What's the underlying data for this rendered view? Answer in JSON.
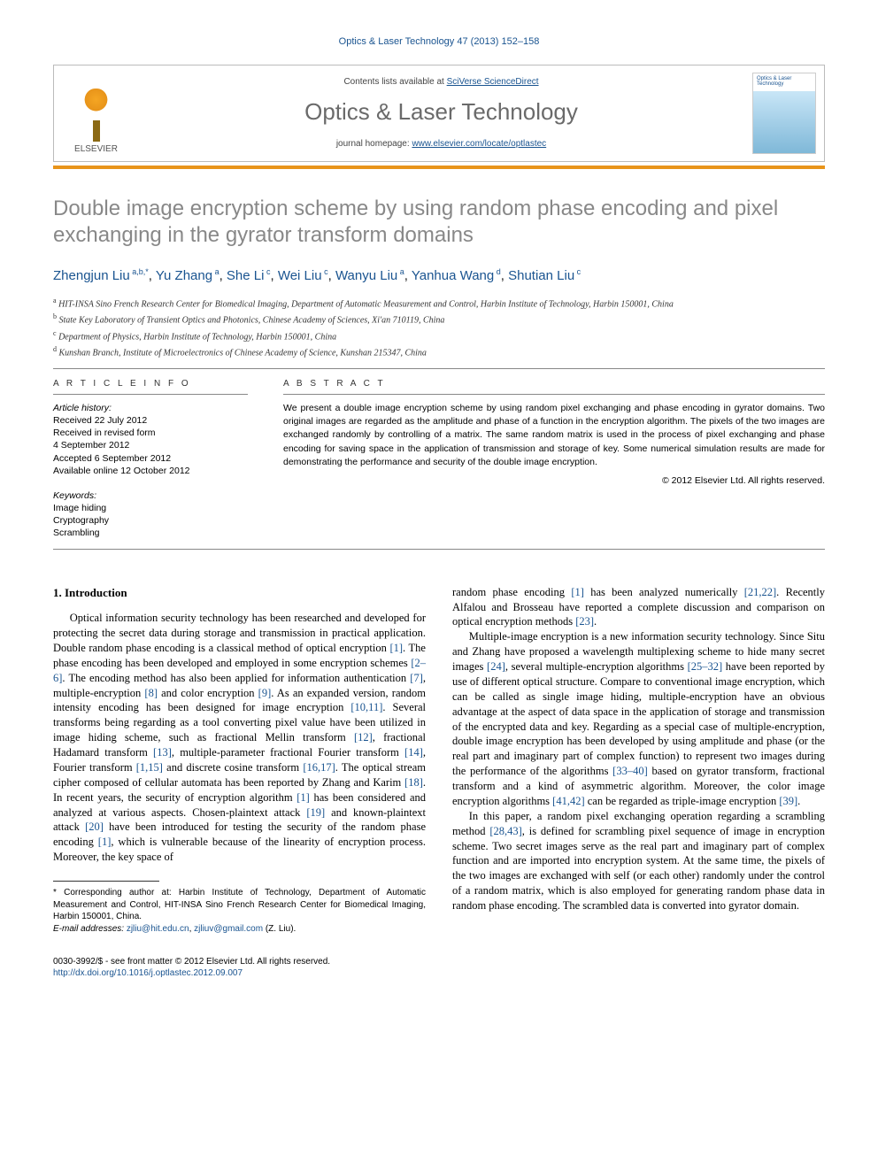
{
  "running_head": "Optics & Laser Technology 47 (2013) 152–158",
  "masthead": {
    "contents_prefix": "Contents lists available at ",
    "contents_link": "SciVerse ScienceDirect",
    "journal": "Optics & Laser Technology",
    "homepage_prefix": "journal homepage: ",
    "homepage_link": "www.elsevier.com/locate/optlastec",
    "publisher": "ELSEVIER",
    "cover_label": "Optics & Laser Technology"
  },
  "title": "Double image encryption scheme by using random phase encoding and pixel exchanging in the gyrator transform domains",
  "authors_html": "Zhengjun Liu <sup>a,b,*</sup>, Yu Zhang <sup>a</sup>, She Li <sup>c</sup>, Wei Liu <sup>c</sup>, Wanyu Liu <sup>a</sup>, Yanhua Wang <sup>d</sup>, Shutian Liu <sup>c</sup>",
  "affiliations": [
    "a HIT-INSA Sino French Research Center for Biomedical Imaging, Department of Automatic Measurement and Control, Harbin Institute of Technology, Harbin 150001, China",
    "b State Key Laboratory of Transient Optics and Photonics, Chinese Academy of Sciences, Xi'an 710119, China",
    "c Department of Physics, Harbin Institute of Technology, Harbin 150001, China",
    "d Kunshan Branch, Institute of Microelectronics of Chinese Academy of Science, Kunshan 215347, China"
  ],
  "article_info": {
    "heading": "A R T I C L E  I N F O",
    "history_label": "Article history:",
    "received": "Received 22 July 2012",
    "revised1": "Received in revised form",
    "revised2": "4 September 2012",
    "accepted": "Accepted 6 September 2012",
    "online": "Available online 12 October 2012",
    "keywords_label": "Keywords:",
    "keywords": [
      "Image hiding",
      "Cryptography",
      "Scrambling"
    ]
  },
  "abstract": {
    "heading": "A B S T R A C T",
    "text": "We present a double image encryption scheme by using random pixel exchanging and phase encoding in gyrator domains. Two original images are regarded as the amplitude and phase of a function in the encryption algorithm. The pixels of the two images are exchanged randomly by controlling of a matrix. The same random matrix is used in the process of pixel exchanging and phase encoding for saving space in the application of transmission and storage of key. Some numerical simulation results are made for demonstrating the performance and security of the double image encryption.",
    "copyright": "© 2012 Elsevier Ltd. All rights reserved."
  },
  "section1": {
    "heading": "1. Introduction",
    "p1": "Optical information security technology has been researched and developed for protecting the secret data during storage and transmission in practical application. Double random phase encoding is a classical method of optical encryption [1]. The phase encoding has been developed and employed in some encryption schemes [2–6]. The encoding method has also been applied for information authentication [7], multiple-encryption [8] and color encryption [9]. As an expanded version, random intensity encoding has been designed for image encryption [10,11]. Several transforms being regarding as a tool converting pixel value have been utilized in image hiding scheme, such as fractional Mellin transform [12], fractional Hadamard transform [13], multiple-parameter fractional Fourier transform [14], Fourier transform [1,15] and discrete cosine transform [16,17]. The optical stream cipher composed of cellular automata has been reported by Zhang and Karim [18]. In recent years, the security of encryption algorithm [1] has been considered and analyzed at various aspects. Chosen-plaintext attack [19] and known-plaintext attack [20] have been introduced for testing the security of the random phase encoding [1], which is vulnerable because of the linearity of encryption process. Moreover, the key space of",
    "p2": "random phase encoding [1] has been analyzed numerically [21,22]. Recently Alfalou and Brosseau have reported a complete discussion and comparison on optical encryption methods [23].",
    "p3": "Multiple-image encryption is a new information security technology. Since Situ and Zhang have proposed a wavelength multiplexing scheme to hide many secret images [24], several multiple-encryption algorithms [25–32] have been reported by use of different optical structure. Compare to conventional image encryption, which can be called as single image hiding, multiple-encryption have an obvious advantage at the aspect of data space in the application of storage and transmission of the encrypted data and key. Regarding as a special case of multiple-encryption, double image encryption has been developed by using amplitude and phase (or the real part and imaginary part of complex function) to represent two images during the performance of the algorithms [33–40] based on gyrator transform, fractional transform and a kind of asymmetric algorithm. Moreover, the color image encryption algorithms [41,42] can be regarded as triple-image encryption [39].",
    "p4": "In this paper, a random pixel exchanging operation regarding a scrambling method [28,43], is defined for scrambling pixel sequence of image in encryption scheme. Two secret images serve as the real part and imaginary part of complex function and are imported into encryption system. At the same time, the pixels of the two images are exchanged with self (or each other) randomly under the control of a random matrix, which is also employed for generating random phase data in random phase encoding. The scrambled data is converted into gyrator domain."
  },
  "footnotes": {
    "corr": "* Corresponding author at: Harbin Institute of Technology, Department of Automatic Measurement and Control, HIT-INSA Sino French Research Center for Biomedical Imaging, Harbin 150001, China.",
    "email_label": "E-mail addresses:",
    "emails": "zjliu@hit.edu.cn, zjliuv@gmail.com (Z. Liu).",
    "issn_line": "0030-3992/$ - see front matter © 2012 Elsevier Ltd. All rights reserved.",
    "doi": "http://dx.doi.org/10.1016/j.optlastec.2012.09.007"
  },
  "colors": {
    "link": "#1a5490",
    "title_gray": "#888888",
    "orange_bar": "#e8941a",
    "rule": "#888888"
  }
}
